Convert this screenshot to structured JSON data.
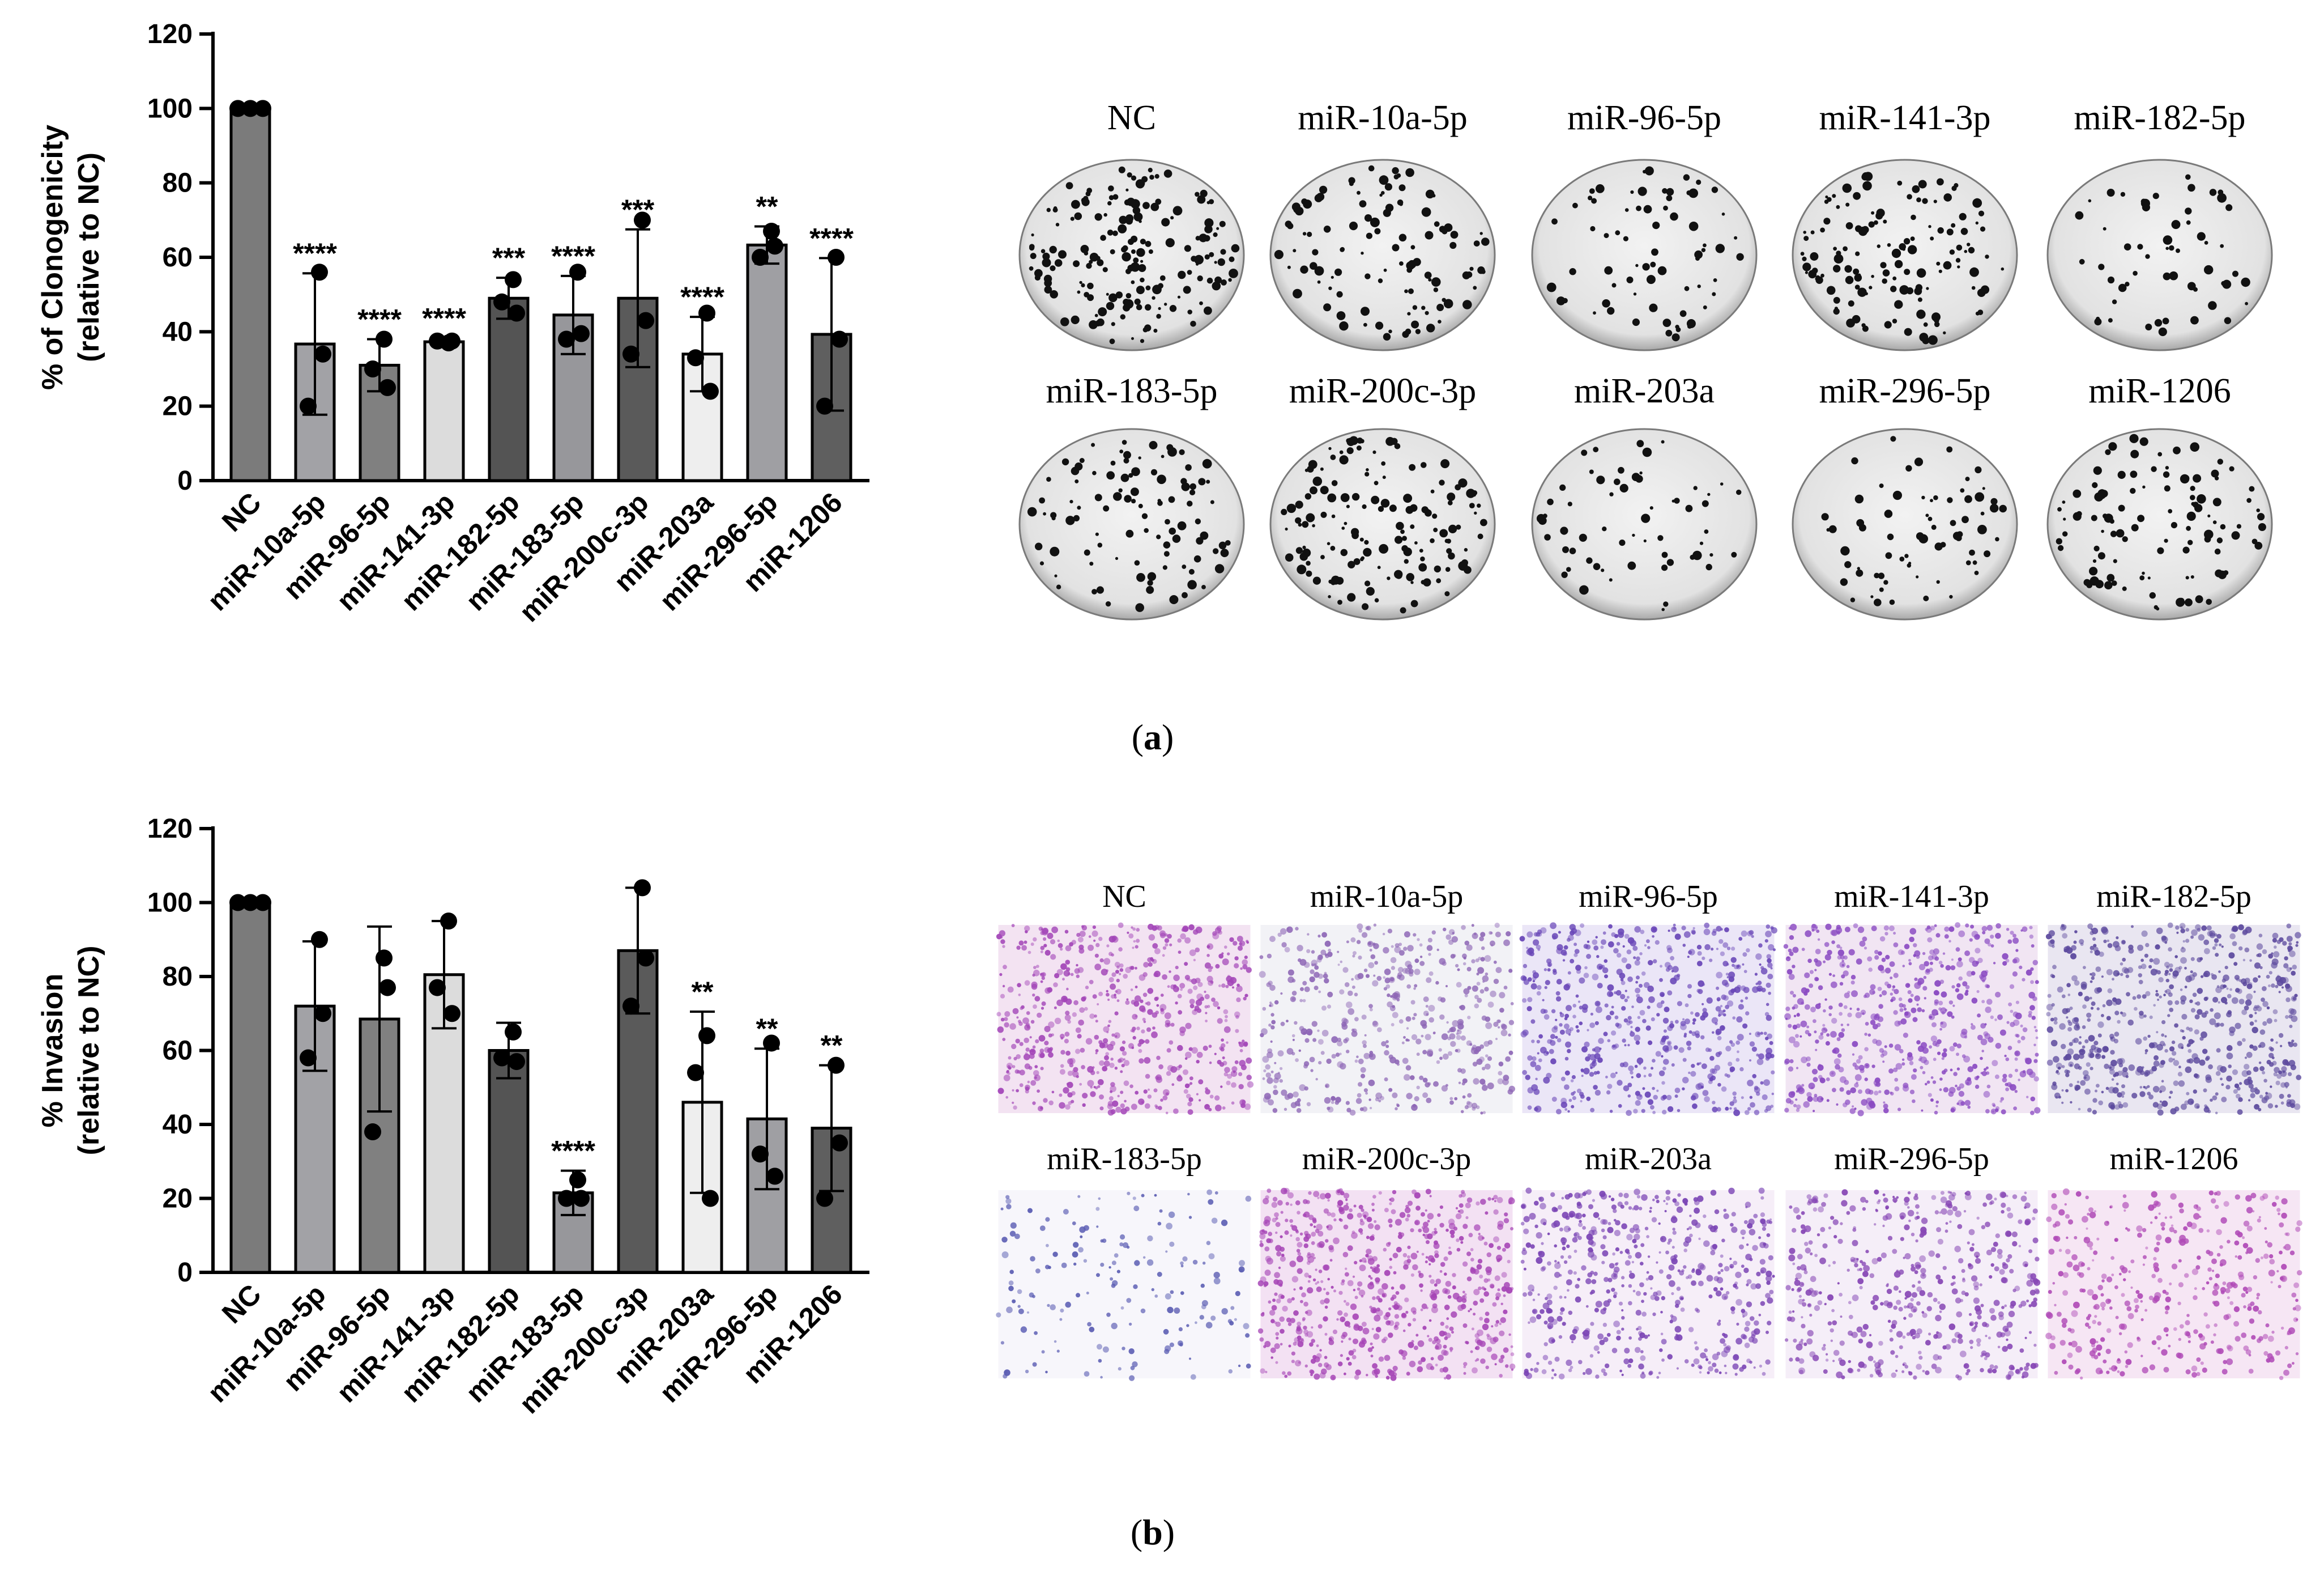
{
  "chart_data": [
    {
      "panel": "a",
      "type": "bar",
      "ylabel_line1": "% of Clonogenicity",
      "ylabel_line2": "(relative to NC)",
      "ylim": [
        0,
        120
      ],
      "yticks": [
        "0",
        "20",
        "40",
        "60",
        "80",
        "100",
        "120"
      ],
      "categories": [
        "NC",
        "miR-10a-5p",
        "miR-96-5p",
        "miR-141-3p",
        "miR-182-5p",
        "miR-183-5p",
        "miR-200c-3p",
        "miR-203a",
        "miR-296-5p",
        "miR-1206"
      ],
      "values": [
        100,
        36.7,
        31,
        37.3,
        49,
        44.5,
        49,
        34,
        63.3,
        39.3
      ],
      "errors": [
        0,
        19,
        7,
        1,
        5.5,
        10.5,
        18.5,
        10,
        5,
        20.5
      ],
      "points": [
        [
          100,
          100,
          100
        ],
        [
          56,
          20,
          34
        ],
        [
          38,
          30,
          25
        ],
        [
          37,
          37.5,
          37.5
        ],
        [
          54,
          48,
          45
        ],
        [
          56,
          38,
          39.5
        ],
        [
          70,
          34,
          43
        ],
        [
          45,
          33,
          24
        ],
        [
          67,
          60,
          63
        ],
        [
          60,
          20,
          38
        ]
      ],
      "significance": [
        "",
        "****",
        "****",
        "****",
        "***",
        "****",
        "***",
        "****",
        "**",
        "****"
      ],
      "bar_colors": [
        "#7b7b7b",
        "#a2a2a6",
        "#808080",
        "#dcdcdc",
        "#545454",
        "#97979b",
        "#5a5a5a",
        "#eeeeee",
        "#9f9fa3",
        "#5f5f5f"
      ]
    },
    {
      "panel": "b",
      "type": "bar",
      "ylabel_line1": "% Invasion",
      "ylabel_line2": "(relative to NC)",
      "ylim": [
        0,
        120
      ],
      "yticks": [
        "0",
        "20",
        "40",
        "60",
        "80",
        "100",
        "120"
      ],
      "categories": [
        "NC",
        "miR-10a-5p",
        "miR-96-5p",
        "miR-141-3p",
        "miR-182-5p",
        "miR-183-5p",
        "miR-200c-3p",
        "miR-203a",
        "miR-296-5p",
        "miR-1206"
      ],
      "values": [
        100,
        72,
        68.5,
        80.5,
        60,
        21.5,
        87,
        46,
        41.5,
        39
      ],
      "errors": [
        0,
        17.5,
        25,
        14.5,
        7.5,
        6,
        17,
        24.5,
        19,
        17
      ],
      "points": [
        [
          100,
          100,
          100
        ],
        [
          90,
          58,
          70
        ],
        [
          85,
          38,
          77
        ],
        [
          95,
          77,
          70
        ],
        [
          65,
          58,
          57
        ],
        [
          25,
          20,
          20
        ],
        [
          104,
          72,
          85
        ],
        [
          64,
          54,
          20
        ],
        [
          62,
          32,
          26
        ],
        [
          56,
          20,
          35
        ]
      ],
      "significance": [
        "",
        "",
        "",
        "",
        "",
        "****",
        "",
        "**",
        "**",
        "**"
      ],
      "bar_colors": [
        "#7b7b7b",
        "#a2a2a6",
        "#808080",
        "#dcdcdc",
        "#545454",
        "#97979b",
        "#5a5a5a",
        "#eeeeee",
        "#9f9fa3",
        "#5f5f5f"
      ]
    }
  ],
  "images_a": {
    "row1": [
      "NC",
      "miR-10a-5p",
      "miR-96-5p",
      "miR-141-3p",
      "miR-182-5p"
    ],
    "row2": [
      "miR-183-5p",
      "miR-200c-3p",
      "miR-203a",
      "miR-296-5p",
      "miR-1206"
    ],
    "caption_letter": "a"
  },
  "images_b": {
    "row1": [
      "NC",
      "miR-10a-5p",
      "miR-96-5p",
      "miR-141-3p",
      "miR-182-5p"
    ],
    "row2": [
      "miR-183-5p",
      "miR-200c-3p",
      "miR-203a",
      "miR-296-5p",
      "miR-1206"
    ],
    "caption_letter": "b"
  }
}
